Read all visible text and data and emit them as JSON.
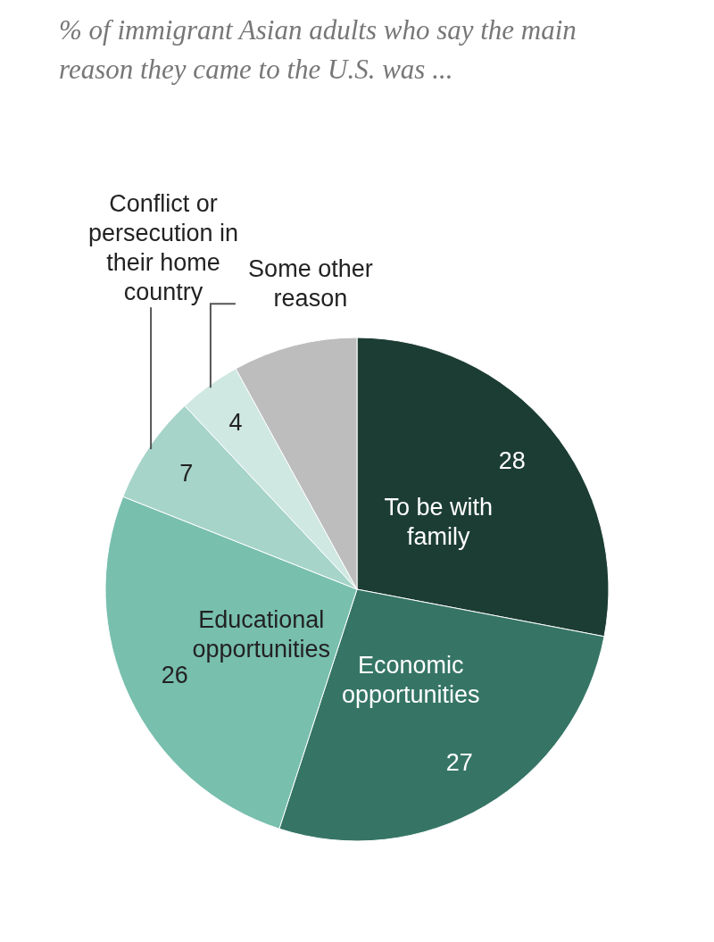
{
  "chart_data": {
    "type": "pie",
    "title": "% of immigrant Asian adults who say the main reason they came to the U.S. was ...",
    "categories": [
      "To be with family",
      "Economic opportunities",
      "Educational opportunities",
      "Conflict or persecution in their home country",
      "Some other reason",
      null
    ],
    "values": [
      28,
      27,
      26,
      7,
      4,
      8
    ],
    "colors": [
      "#1c3d33",
      "#367565",
      "#78bfae",
      "#a6d4c8",
      "#cfe8e1",
      "#bdbdbd"
    ],
    "value_labels": [
      "28",
      "27",
      "26",
      "7",
      "4",
      null
    ],
    "legend": false
  }
}
